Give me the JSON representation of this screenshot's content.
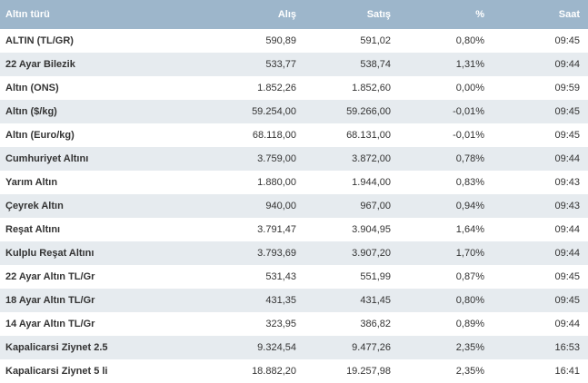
{
  "table": {
    "header": [
      "Altın türü",
      "Alış",
      "Satış",
      "%",
      "Saat"
    ],
    "rows": [
      [
        "ALTIN (TL/GR)",
        "590,89",
        "591,02",
        "0,80%",
        "09:45"
      ],
      [
        "22 Ayar Bilezik",
        "533,77",
        "538,74",
        "1,31%",
        "09:44"
      ],
      [
        "Altın (ONS)",
        "1.852,26",
        "1.852,60",
        "0,00%",
        "09:59"
      ],
      [
        "Altın ($/kg)",
        "59.254,00",
        "59.266,00",
        "-0,01%",
        "09:45"
      ],
      [
        "Altın (Euro/kg)",
        "68.118,00",
        "68.131,00",
        "-0,01%",
        "09:45"
      ],
      [
        "Cumhuriyet Altını",
        "3.759,00",
        "3.872,00",
        "0,78%",
        "09:44"
      ],
      [
        "Yarım Altın",
        "1.880,00",
        "1.944,00",
        "0,83%",
        "09:43"
      ],
      [
        "Çeyrek Altın",
        "940,00",
        "967,00",
        "0,94%",
        "09:43"
      ],
      [
        "Reşat Altını",
        "3.791,47",
        "3.904,95",
        "1,64%",
        "09:44"
      ],
      [
        "Kulplu Reşat Altını",
        "3.793,69",
        "3.907,20",
        "1,70%",
        "09:44"
      ],
      [
        "22 Ayar Altın TL/Gr",
        "531,43",
        "551,99",
        "0,87%",
        "09:45"
      ],
      [
        "18 Ayar Altın TL/Gr",
        "431,35",
        "431,45",
        "0,80%",
        "09:45"
      ],
      [
        "14 Ayar Altın TL/Gr",
        "323,95",
        "386,82",
        "0,89%",
        "09:44"
      ],
      [
        "Kapalicarsi Ziynet 2.5",
        "9.324,54",
        "9.477,26",
        "2,35%",
        "16:53"
      ],
      [
        "Kapalicarsi Ziynet 5 li",
        "18.882,20",
        "19.257,98",
        "2,35%",
        "16:41"
      ]
    ]
  }
}
